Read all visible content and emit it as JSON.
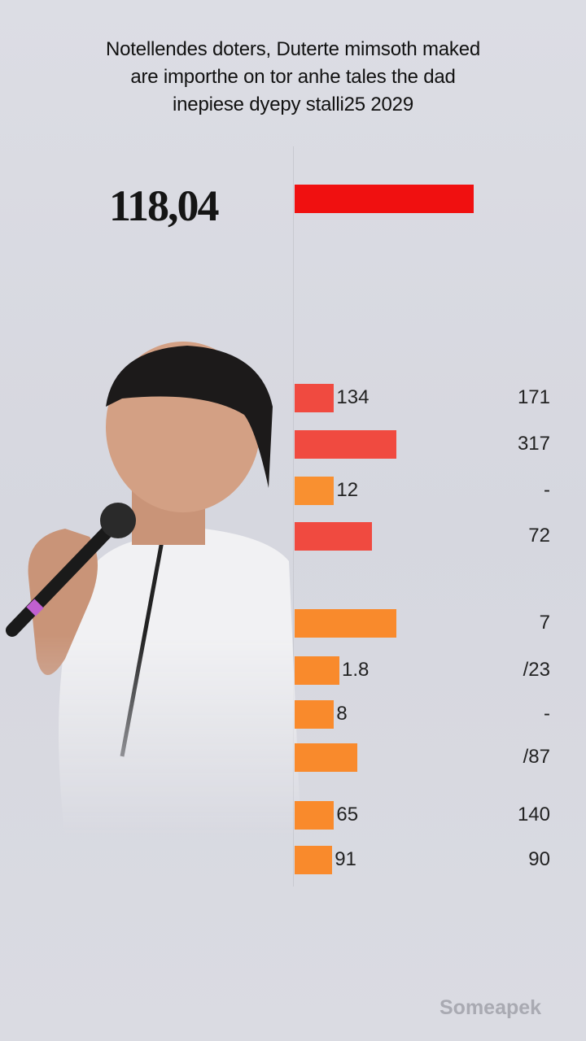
{
  "title_lines": [
    "Notellendes doters, Duterte mimsoth maked",
    "are importhe on tor anhe tales the dad",
    "inepiese dyepy stalli25 2029"
  ],
  "watermark": "Someapek",
  "colors": {
    "red": "#f03a30",
    "bright_red": "#f01010",
    "orange": "#f98a2c"
  },
  "chart_data": {
    "type": "bar",
    "orientation": "horizontal",
    "headline": {
      "label": "118,04",
      "relative_length": 1.0,
      "color": "#f01010"
    },
    "rows": [
      {
        "bar_label": "134",
        "right_value": "171",
        "relative_length": 0.22,
        "color": "#f04a40"
      },
      {
        "bar_label": "",
        "right_value": "317",
        "relative_length": 0.57,
        "color": "#f04a40"
      },
      {
        "bar_label": "12",
        "right_value": "-",
        "relative_length": 0.22,
        "color": "#f99030"
      },
      {
        "bar_label": "",
        "right_value": "72",
        "relative_length": 0.43,
        "color": "#f04a40"
      },
      {
        "bar_label": "",
        "right_value": "7",
        "relative_length": 0.57,
        "color": "#f98a2c"
      },
      {
        "bar_label": "1.8",
        "right_value": "/23",
        "relative_length": 0.25,
        "color": "#f98a2c"
      },
      {
        "bar_label": "8",
        "right_value": "-",
        "relative_length": 0.22,
        "color": "#f98a2c"
      },
      {
        "bar_label": "",
        "right_value": "/87",
        "relative_length": 0.35,
        "color": "#f98a2c"
      },
      {
        "bar_label": "65",
        "right_value": "140",
        "relative_length": 0.22,
        "color": "#f98a2c"
      },
      {
        "bar_label": "91",
        "right_value": "90",
        "relative_length": 0.21,
        "color": "#f98a2c"
      }
    ]
  }
}
